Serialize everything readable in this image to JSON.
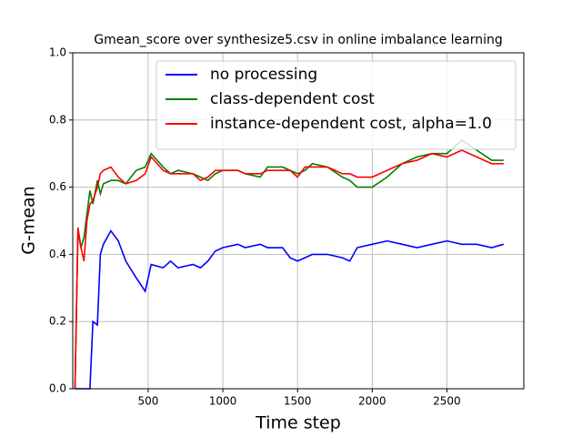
{
  "chart_data": {
    "type": "line",
    "title": "Gmean_score over synthesize5.csv in online imbalance learning",
    "x_label": "Time step",
    "y_label": "G-mean",
    "x": [
      10,
      30,
      50,
      70,
      90,
      110,
      130,
      160,
      180,
      200,
      250,
      300,
      350,
      420,
      480,
      520,
      600,
      650,
      700,
      800,
      850,
      900,
      950,
      1000,
      1100,
      1150,
      1250,
      1300,
      1400,
      1450,
      1500,
      1550,
      1600,
      1700,
      1800,
      1850,
      1900,
      2000,
      2100,
      2200,
      2300,
      2400,
      2500,
      2600,
      2700,
      2800,
      2880
    ],
    "series": [
      {
        "name": "no processing",
        "color": "#0000ff",
        "values": [
          0,
          0,
          0,
          0,
          0,
          0,
          0.2,
          0.19,
          0.4,
          0.43,
          0.47,
          0.44,
          0.38,
          0.33,
          0.29,
          0.37,
          0.36,
          0.38,
          0.36,
          0.37,
          0.36,
          0.38,
          0.41,
          0.42,
          0.43,
          0.42,
          0.43,
          0.42,
          0.42,
          0.39,
          0.38,
          0.39,
          0.4,
          0.4,
          0.39,
          0.38,
          0.42,
          0.43,
          0.44,
          0.43,
          0.42,
          0.43,
          0.44,
          0.43,
          0.43,
          0.42,
          0.43
        ]
      },
      {
        "name": "class-dependent cost",
        "color": "#008000",
        "values": [
          0,
          0.47,
          0.42,
          0.45,
          0.52,
          0.59,
          0.55,
          0.62,
          0.58,
          0.61,
          0.62,
          0.62,
          0.61,
          0.65,
          0.66,
          0.7,
          0.66,
          0.64,
          0.65,
          0.64,
          0.63,
          0.62,
          0.64,
          0.65,
          0.65,
          0.64,
          0.63,
          0.66,
          0.66,
          0.65,
          0.64,
          0.65,
          0.67,
          0.66,
          0.63,
          0.62,
          0.6,
          0.6,
          0.63,
          0.67,
          0.69,
          0.7,
          0.7,
          0.74,
          0.71,
          0.68,
          0.68
        ]
      },
      {
        "name": "instance-dependent cost, alpha=1.0",
        "color": "#ff0000",
        "values": [
          0,
          0.48,
          0.42,
          0.38,
          0.5,
          0.55,
          0.56,
          0.6,
          0.64,
          0.65,
          0.66,
          0.63,
          0.61,
          0.62,
          0.64,
          0.69,
          0.65,
          0.64,
          0.64,
          0.64,
          0.62,
          0.63,
          0.65,
          0.65,
          0.65,
          0.64,
          0.64,
          0.65,
          0.65,
          0.65,
          0.63,
          0.66,
          0.66,
          0.66,
          0.64,
          0.64,
          0.63,
          0.63,
          0.65,
          0.67,
          0.68,
          0.7,
          0.69,
          0.71,
          0.69,
          0.67,
          0.67
        ]
      }
    ],
    "xlim": [
      -5,
      3015
    ],
    "xticks": [
      500,
      1000,
      1500,
      2000,
      2500
    ],
    "ylim": [
      0,
      1
    ],
    "yticks": [
      {
        "value": 0,
        "label": "0.0"
      },
      {
        "value": 0.2,
        "label": "0.2"
      },
      {
        "value": 0.4,
        "label": "0.4"
      },
      {
        "value": 0.6,
        "label": "0.6"
      },
      {
        "value": 0.8,
        "label": "0.8"
      },
      {
        "value": 1,
        "label": "1.0"
      }
    ],
    "grid": true,
    "legend": "upper right"
  }
}
